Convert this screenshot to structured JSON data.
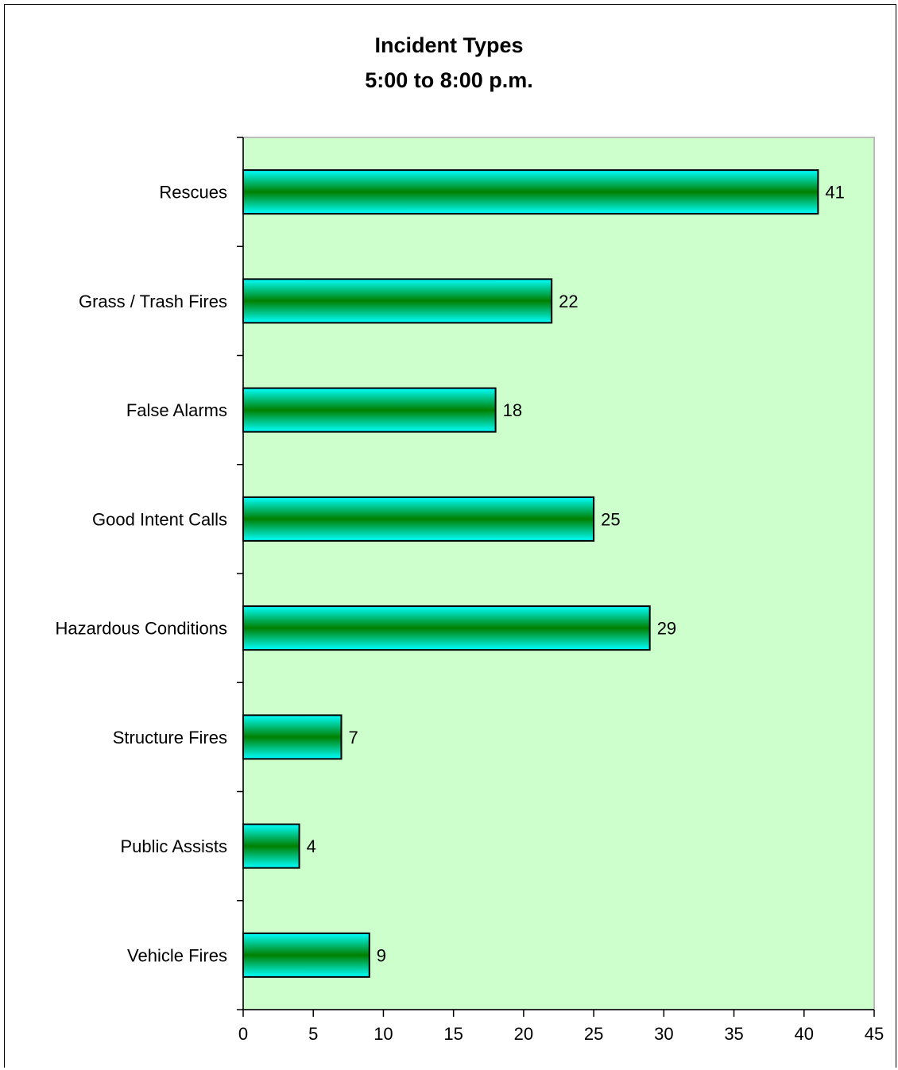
{
  "chart_data": {
    "type": "bar",
    "orientation": "horizontal",
    "title": "Incident Types",
    "subtitle": "5:00 to 8:00 p.m.",
    "categories": [
      "Rescues",
      "Grass / Trash Fires",
      "False Alarms",
      "Good Intent Calls",
      "Hazardous Conditions",
      "Structure Fires",
      "Public Assists",
      "Vehicle Fires"
    ],
    "values": [
      41,
      22,
      18,
      25,
      29,
      7,
      4,
      9
    ],
    "data_labels": [
      "41",
      "22",
      "18",
      "25",
      "29",
      "7",
      "4",
      "9"
    ],
    "xlim": [
      0,
      45
    ],
    "xticks": [
      0,
      5,
      10,
      15,
      20,
      25,
      30,
      35,
      40,
      45
    ],
    "xtick_labels": [
      "0",
      "5",
      "10",
      "15",
      "20",
      "25",
      "30",
      "35",
      "40",
      "45"
    ],
    "grid": false,
    "legend": "none",
    "colors": {
      "plot_background": "#ccffcc",
      "bar_edge": "#00ffff",
      "bar_center": "#008000",
      "bar_outline": "#000000"
    }
  }
}
